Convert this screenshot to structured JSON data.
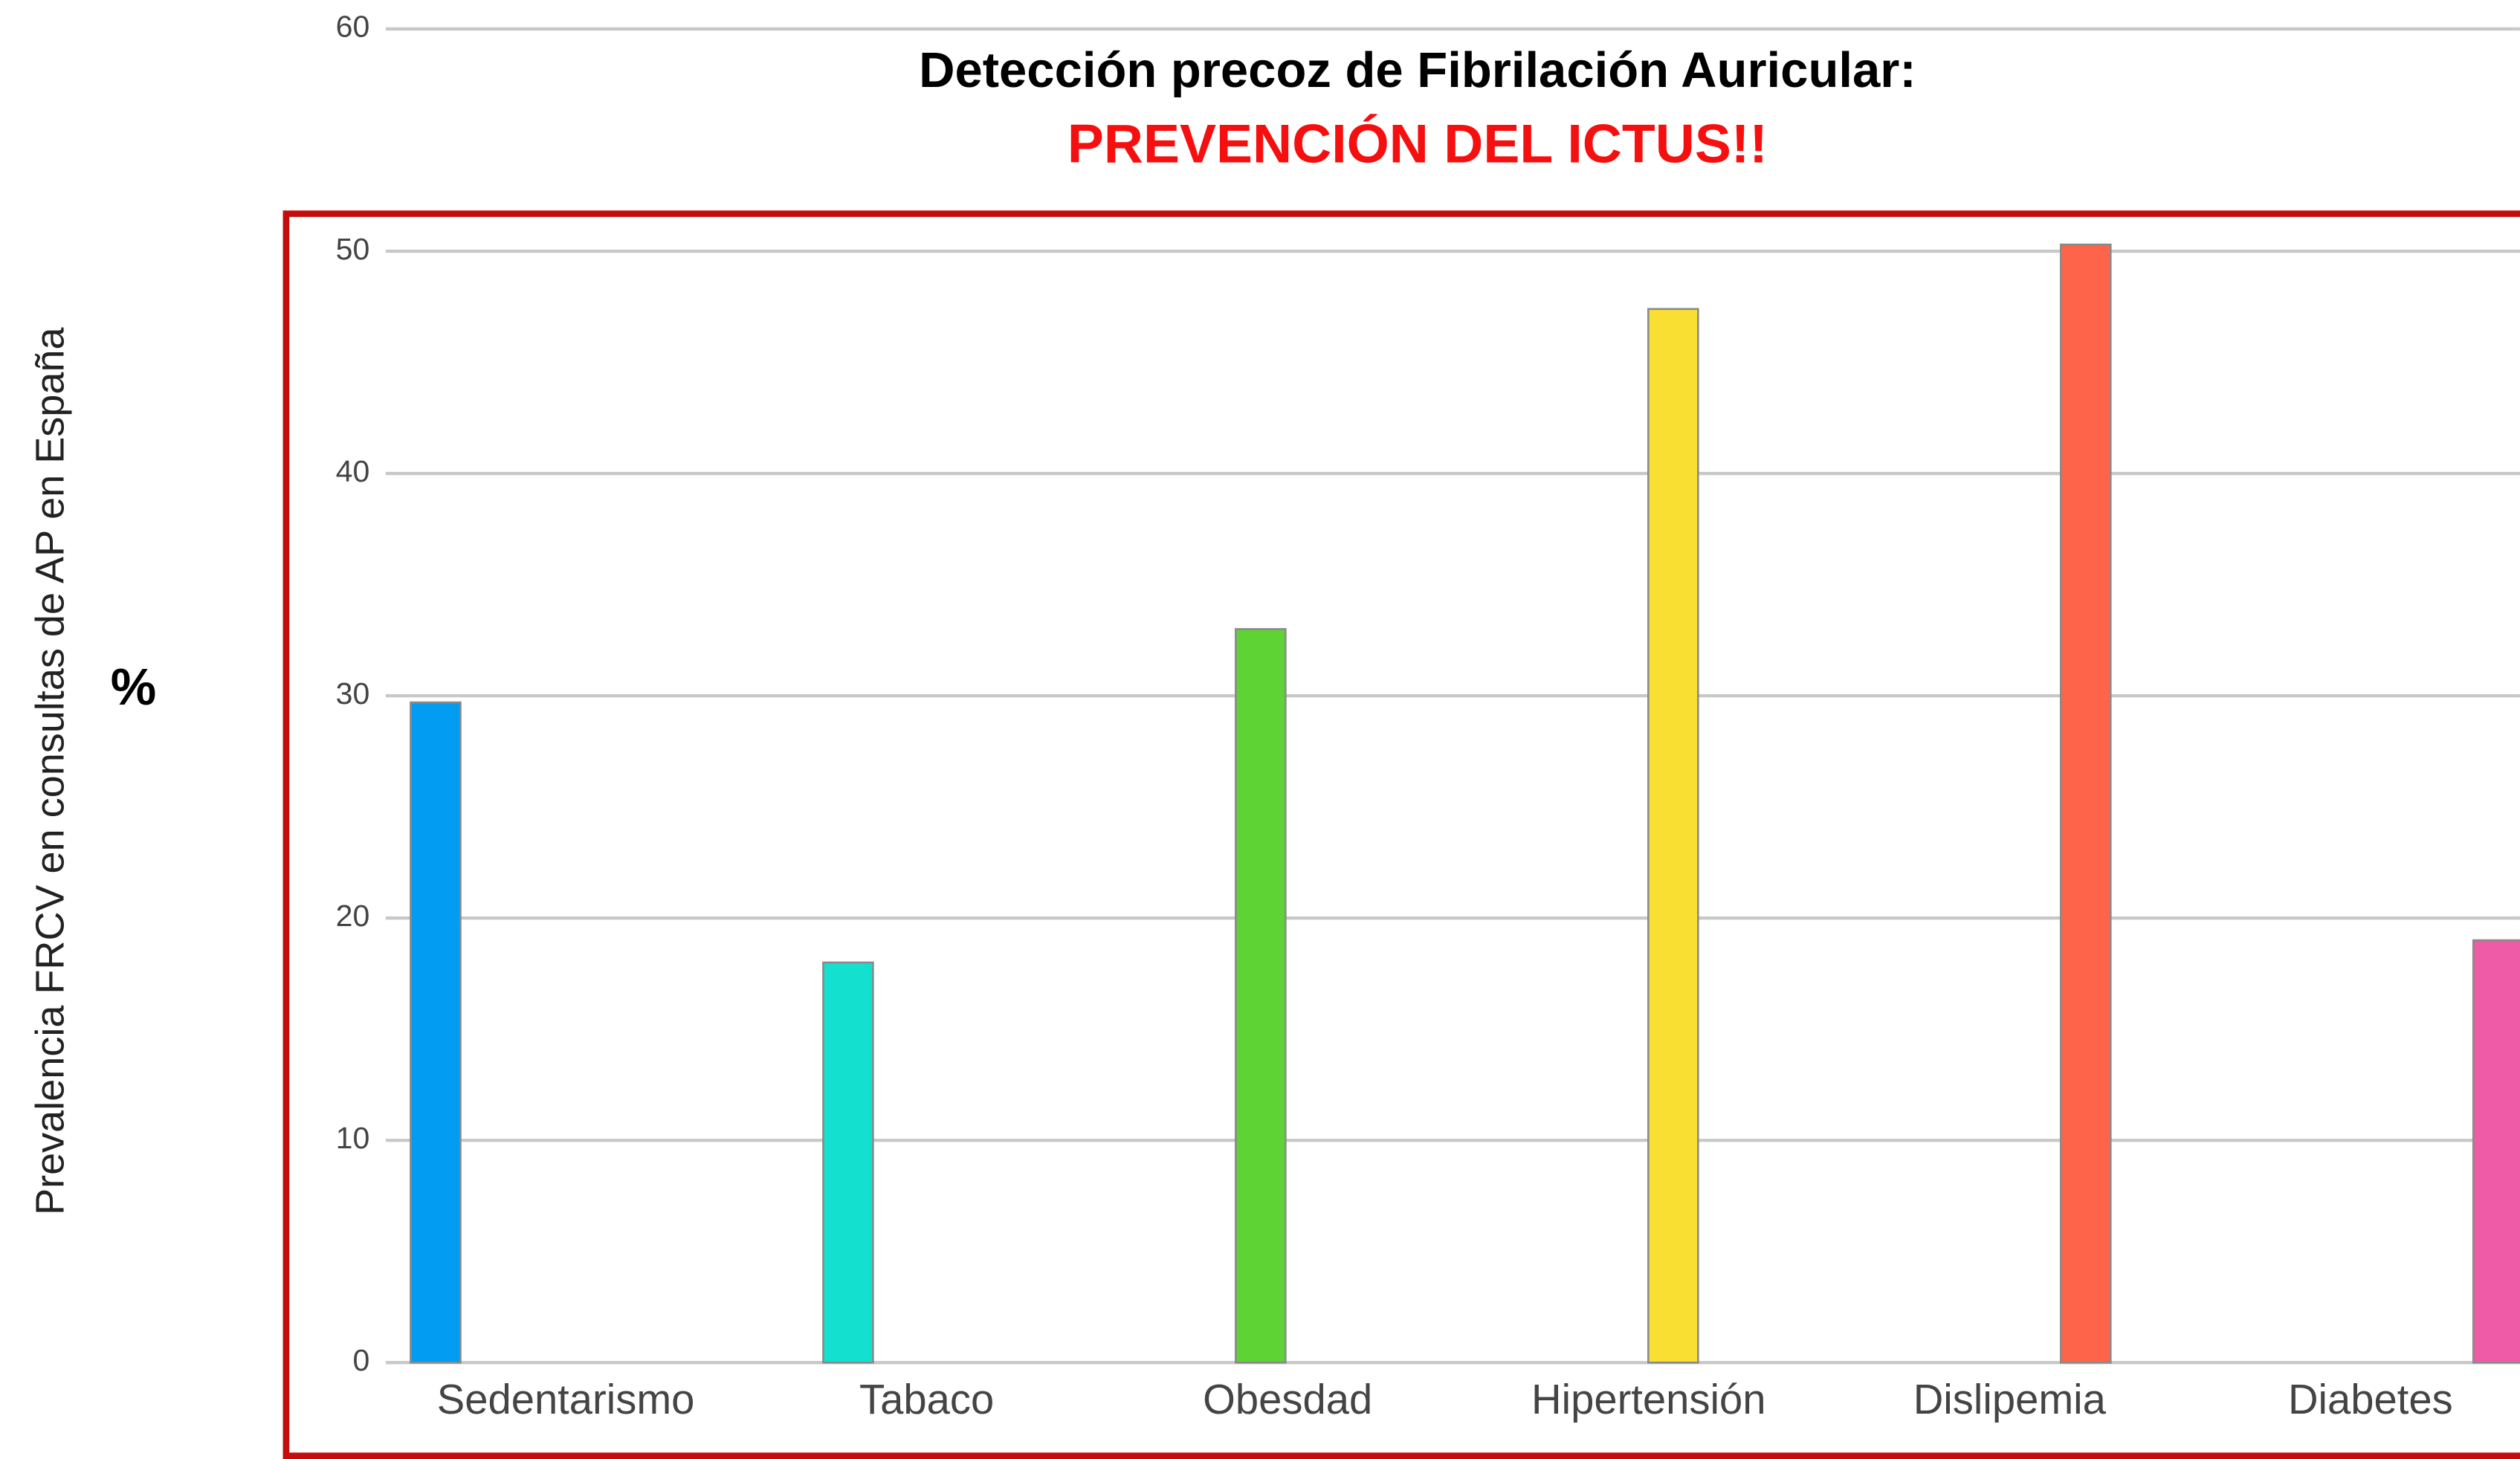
{
  "chart_data": {
    "type": "bar",
    "title": "Detección precoz de Fibrilación Auricular:",
    "subtitle": "PREVENCIÓN DEL ICTUS!!",
    "y_label": "Prevalencia FRCV en consultas de AP en España",
    "y_unit": "%",
    "categories": [
      "Sedentarismo",
      "Tabaco",
      "Obesdad",
      "Hipertensión",
      "Dislipemia",
      "Diabetes"
    ],
    "values": [
      29.7,
      18,
      33,
      47.4,
      50.3,
      19
    ],
    "colors": [
      "#039cf3",
      "#14e0d0",
      "#5ed334",
      "#f8df32",
      "#fe644a",
      "#ef5ba7"
    ],
    "ylim": [
      0,
      60
    ],
    "yticks": [
      0,
      10,
      20,
      30,
      40,
      50,
      60
    ],
    "grid": true
  }
}
